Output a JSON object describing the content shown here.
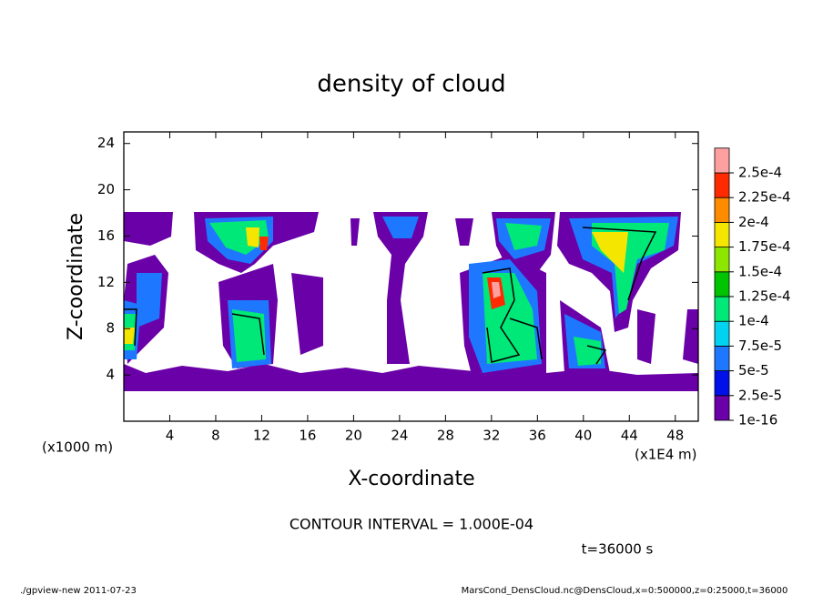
{
  "chart_data": {
    "type": "contour",
    "title": "density of cloud",
    "xlabel": "X-coordinate",
    "ylabel": "Z-coordinate",
    "xlim": [
      0,
      50
    ],
    "xticks": [
      4,
      8,
      12,
      16,
      20,
      24,
      28,
      32,
      36,
      40,
      44,
      48
    ],
    "ylim": [
      0,
      25
    ],
    "yticks": [
      4,
      8,
      12,
      16,
      20,
      24
    ],
    "colorbar": {
      "levels": [
        {
          "value": 1e-16,
          "label": "1e-16"
        },
        {
          "value": 2.5e-05,
          "label": "2.5e-5"
        },
        {
          "value": 5e-05,
          "label": "5e-5"
        },
        {
          "value": 7.5e-05,
          "label": "7.5e-5"
        },
        {
          "value": 0.0001,
          "label": "1e-4"
        },
        {
          "value": 0.000125,
          "label": "1.25e-4"
        },
        {
          "value": 0.00015,
          "label": "1.5e-4"
        },
        {
          "value": 0.000175,
          "label": "1.75e-4"
        },
        {
          "value": 0.0002,
          "label": "2e-4"
        },
        {
          "value": 0.000225,
          "label": "2.25e-4"
        },
        {
          "value": 0.00025,
          "label": "2.5e-4"
        }
      ],
      "colors": [
        "#6a00a8",
        "#0010e8",
        "#1e78ff",
        "#00d2f0",
        "#00e878",
        "#00c400",
        "#8ce600",
        "#f5e600",
        "#ff8c00",
        "#ff2a00",
        "#ffa0a0"
      ]
    },
    "annotations": [
      "(x1000 m)",
      "(x1E4 m)",
      "CONTOUR INTERVAL = 1.000E-04",
      "t=36000 s",
      "./gpview-new  2011-07-23",
      "MarsCond_DensCloud.nc@DensCloud,x=0:500000,z=0:25000,t=36000"
    ]
  }
}
